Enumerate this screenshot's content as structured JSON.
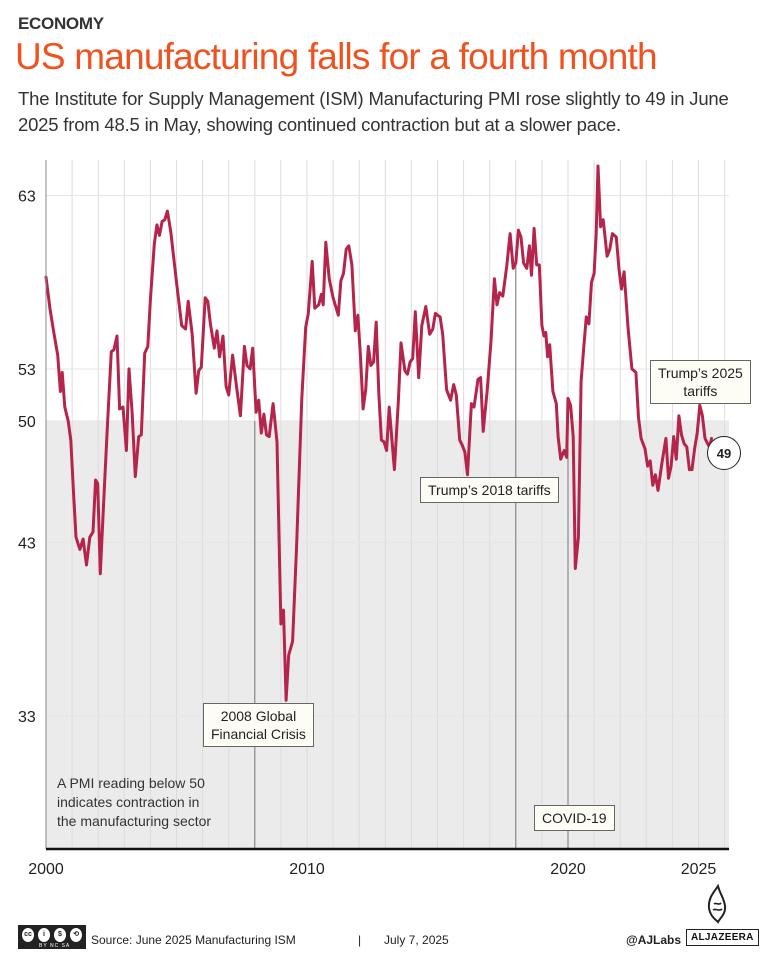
{
  "header": {
    "kicker": "ECONOMY",
    "title": "US manufacturing falls for a fourth month",
    "subtitle": "The Institute for Supply Management (ISM) Manufacturing PMI rose slightly to 49 in June 2025 from 48.5 in May, showing continued contraction but at a slower pace."
  },
  "colors": {
    "title": "#f0521f",
    "line": "#b5244a",
    "contraction_shade": "#ebebeb",
    "event_line": "#777777"
  },
  "chart_data": {
    "type": "line",
    "title": "US manufacturing falls for a fourth month",
    "xlabel": "",
    "ylabel": "",
    "ylim": [
      27,
      65
    ],
    "xlim": [
      2000,
      2026.2
    ],
    "yticks": [
      33,
      43,
      50,
      53,
      63
    ],
    "xticks": [
      2000,
      2010,
      2020,
      2025
    ],
    "grid": "vertical yearly",
    "threshold": {
      "value": 50,
      "label": "A PMI reading below 50 indicates contraction in the manufacturing sector"
    },
    "series": [
      {
        "name": "ISM Manufacturing PMI",
        "points": [
          [
            2000.0,
            58.3
          ],
          [
            2000.15,
            56.5
          ],
          [
            2000.3,
            55.1
          ],
          [
            2000.45,
            53.8
          ],
          [
            2000.55,
            51.7
          ],
          [
            2000.62,
            52.8
          ],
          [
            2000.72,
            50.8
          ],
          [
            2000.85,
            50.0
          ],
          [
            2000.95,
            48.9
          ],
          [
            2001.05,
            46.0
          ],
          [
            2001.15,
            43.3
          ],
          [
            2001.3,
            42.6
          ],
          [
            2001.42,
            43.2
          ],
          [
            2001.55,
            41.7
          ],
          [
            2001.68,
            43.3
          ],
          [
            2001.8,
            43.6
          ],
          [
            2001.9,
            46.6
          ],
          [
            2001.98,
            46.4
          ],
          [
            2002.08,
            41.2
          ],
          [
            2002.2,
            45.0
          ],
          [
            2002.35,
            49.6
          ],
          [
            2002.5,
            54.0
          ],
          [
            2002.6,
            54.1
          ],
          [
            2002.72,
            54.9
          ],
          [
            2002.82,
            50.7
          ],
          [
            2002.95,
            50.8
          ],
          [
            2003.08,
            48.3
          ],
          [
            2003.18,
            53.0
          ],
          [
            2003.3,
            50.5
          ],
          [
            2003.42,
            46.8
          ],
          [
            2003.55,
            49.1
          ],
          [
            2003.65,
            49.2
          ],
          [
            2003.78,
            53.9
          ],
          [
            2003.9,
            54.3
          ],
          [
            2004.0,
            57.0
          ],
          [
            2004.15,
            60.2
          ],
          [
            2004.25,
            61.3
          ],
          [
            2004.35,
            60.7
          ],
          [
            2004.45,
            61.5
          ],
          [
            2004.55,
            61.6
          ],
          [
            2004.65,
            62.1
          ],
          [
            2004.78,
            60.9
          ],
          [
            2005.0,
            58.0
          ],
          [
            2005.2,
            55.5
          ],
          [
            2005.35,
            55.3
          ],
          [
            2005.45,
            56.9
          ],
          [
            2005.6,
            55.0
          ],
          [
            2005.75,
            51.6
          ],
          [
            2005.85,
            52.9
          ],
          [
            2005.95,
            53.1
          ],
          [
            2006.1,
            57.1
          ],
          [
            2006.2,
            56.9
          ],
          [
            2006.3,
            55.6
          ],
          [
            2006.45,
            54.2
          ],
          [
            2006.55,
            55.2
          ],
          [
            2006.65,
            53.7
          ],
          [
            2006.78,
            54.9
          ],
          [
            2006.9,
            52.0
          ],
          [
            2007.0,
            51.5
          ],
          [
            2007.15,
            53.8
          ],
          [
            2007.3,
            52.0
          ],
          [
            2007.45,
            50.3
          ],
          [
            2007.6,
            54.3
          ],
          [
            2007.7,
            53.2
          ],
          [
            2007.82,
            53.0
          ],
          [
            2007.92,
            54.2
          ],
          [
            2008.05,
            50.5
          ],
          [
            2008.15,
            51.2
          ],
          [
            2008.25,
            49.3
          ],
          [
            2008.35,
            50.4
          ],
          [
            2008.45,
            49.2
          ],
          [
            2008.55,
            49.1
          ],
          [
            2008.7,
            51.0
          ],
          [
            2008.85,
            48.8
          ],
          [
            2009.0,
            38.3
          ],
          [
            2009.1,
            39.1
          ],
          [
            2009.2,
            33.9
          ],
          [
            2009.3,
            36.5
          ],
          [
            2009.45,
            37.3
          ],
          [
            2009.6,
            42.8
          ],
          [
            2009.8,
            51.3
          ],
          [
            2009.95,
            55.4
          ],
          [
            2010.05,
            56.2
          ],
          [
            2010.2,
            59.2
          ],
          [
            2010.3,
            56.5
          ],
          [
            2010.45,
            56.7
          ],
          [
            2010.55,
            57.3
          ],
          [
            2010.62,
            56.7
          ],
          [
            2010.72,
            60.3
          ],
          [
            2010.85,
            58.2
          ],
          [
            2011.0,
            57.1
          ],
          [
            2011.1,
            56.6
          ],
          [
            2011.2,
            56.1
          ],
          [
            2011.3,
            58.1
          ],
          [
            2011.4,
            58.5
          ],
          [
            2011.5,
            59.9
          ],
          [
            2011.6,
            60.1
          ],
          [
            2011.72,
            59.0
          ],
          [
            2011.85,
            55.2
          ],
          [
            2011.95,
            56.1
          ],
          [
            2012.05,
            53.7
          ],
          [
            2012.15,
            50.7
          ],
          [
            2012.25,
            51.8
          ],
          [
            2012.35,
            54.3
          ],
          [
            2012.45,
            53.2
          ],
          [
            2012.55,
            53.4
          ],
          [
            2012.65,
            55.7
          ],
          [
            2012.75,
            51.6
          ],
          [
            2012.85,
            48.9
          ],
          [
            2012.95,
            48.8
          ],
          [
            2013.05,
            48.3
          ],
          [
            2013.15,
            50.8
          ],
          [
            2013.25,
            49.0
          ],
          [
            2013.35,
            47.2
          ],
          [
            2013.5,
            51.2
          ],
          [
            2013.6,
            54.5
          ],
          [
            2013.75,
            52.9
          ],
          [
            2013.85,
            52.7
          ],
          [
            2013.95,
            53.4
          ],
          [
            2014.05,
            53.6
          ],
          [
            2014.15,
            56.3
          ],
          [
            2014.28,
            52.5
          ],
          [
            2014.4,
            55.5
          ],
          [
            2014.55,
            56.6
          ],
          [
            2014.7,
            55.0
          ],
          [
            2014.82,
            55.3
          ],
          [
            2014.92,
            56.2
          ],
          [
            2015.0,
            56.1
          ],
          [
            2015.1,
            56.0
          ],
          [
            2015.2,
            55.0
          ],
          [
            2015.35,
            51.8
          ],
          [
            2015.5,
            51.2
          ],
          [
            2015.62,
            52.1
          ],
          [
            2015.72,
            51.5
          ],
          [
            2015.85,
            48.9
          ],
          [
            2015.95,
            48.6
          ],
          [
            2016.05,
            48.2
          ],
          [
            2016.15,
            46.9
          ],
          [
            2016.3,
            51.0
          ],
          [
            2016.4,
            50.8
          ],
          [
            2016.55,
            52.4
          ],
          [
            2016.65,
            52.5
          ],
          [
            2016.75,
            49.4
          ],
          [
            2016.9,
            51.7
          ],
          [
            2017.05,
            54.6
          ],
          [
            2017.18,
            58.2
          ],
          [
            2017.28,
            56.7
          ],
          [
            2017.38,
            57.4
          ],
          [
            2017.5,
            57.2
          ],
          [
            2017.65,
            58.9
          ],
          [
            2017.78,
            60.8
          ],
          [
            2017.9,
            58.8
          ],
          [
            2018.0,
            59.1
          ],
          [
            2018.1,
            61.0
          ],
          [
            2018.2,
            60.6
          ],
          [
            2018.3,
            59.1
          ],
          [
            2018.42,
            58.8
          ],
          [
            2018.52,
            60.1
          ],
          [
            2018.6,
            58.4
          ],
          [
            2018.7,
            61.1
          ],
          [
            2018.8,
            59.0
          ],
          [
            2018.9,
            59.0
          ],
          [
            2019.0,
            55.5
          ],
          [
            2019.08,
            54.9
          ],
          [
            2019.15,
            55.1
          ],
          [
            2019.22,
            53.7
          ],
          [
            2019.3,
            54.4
          ],
          [
            2019.42,
            51.7
          ],
          [
            2019.55,
            51.0
          ],
          [
            2019.62,
            49.1
          ],
          [
            2019.72,
            47.8
          ],
          [
            2019.85,
            48.3
          ],
          [
            2019.95,
            47.9
          ],
          [
            2020.0,
            51.3
          ],
          [
            2020.1,
            50.9
          ],
          [
            2020.2,
            49.1
          ],
          [
            2020.28,
            41.5
          ],
          [
            2020.4,
            43.3
          ],
          [
            2020.5,
            52.3
          ],
          [
            2020.6,
            54.2
          ],
          [
            2020.7,
            56.0
          ],
          [
            2020.8,
            55.6
          ],
          [
            2020.9,
            58.0
          ],
          [
            2021.0,
            58.5
          ],
          [
            2021.08,
            60.8
          ],
          [
            2021.15,
            64.7
          ],
          [
            2021.25,
            61.2
          ],
          [
            2021.35,
            61.6
          ],
          [
            2021.5,
            59.5
          ],
          [
            2021.6,
            59.9
          ],
          [
            2021.7,
            60.8
          ],
          [
            2021.85,
            60.6
          ],
          [
            2021.95,
            58.8
          ],
          [
            2022.05,
            57.6
          ],
          [
            2022.15,
            58.6
          ],
          [
            2022.3,
            55.4
          ],
          [
            2022.45,
            53.0
          ],
          [
            2022.6,
            52.8
          ],
          [
            2022.7,
            50.2
          ],
          [
            2022.8,
            49.0
          ],
          [
            2022.95,
            48.4
          ],
          [
            2023.05,
            47.4
          ],
          [
            2023.15,
            47.7
          ],
          [
            2023.25,
            46.3
          ],
          [
            2023.35,
            46.9
          ],
          [
            2023.45,
            46.0
          ],
          [
            2023.6,
            47.6
          ],
          [
            2023.75,
            49.0
          ],
          [
            2023.85,
            46.7
          ],
          [
            2023.95,
            47.4
          ],
          [
            2024.05,
            49.1
          ],
          [
            2024.15,
            47.8
          ],
          [
            2024.25,
            50.3
          ],
          [
            2024.35,
            49.2
          ],
          [
            2024.45,
            48.7
          ],
          [
            2024.55,
            48.5
          ],
          [
            2024.65,
            47.2
          ],
          [
            2024.75,
            47.2
          ],
          [
            2024.85,
            48.4
          ],
          [
            2024.95,
            49.3
          ],
          [
            2025.05,
            50.9
          ],
          [
            2025.15,
            50.3
          ],
          [
            2025.25,
            49.0
          ],
          [
            2025.35,
            48.7
          ],
          [
            2025.42,
            48.5
          ],
          [
            2025.5,
            49.0
          ]
        ]
      }
    ],
    "annotations": [
      {
        "label": "2008 Global Financial Crisis",
        "year": 2008.0
      },
      {
        "label": "Trump’s 2018 tariffs",
        "year": 2018.0
      },
      {
        "label": "COVID-19",
        "year": 2020.0
      },
      {
        "label": "Trump’s 2025 tariffs",
        "year": 2025.0
      }
    ],
    "end_label": "49"
  },
  "labels": {
    "annot_gfc_line1": "2008 Global",
    "annot_gfc_line2": "Financial Crisis",
    "annot_2018": "Trump’s 2018 tariffs",
    "annot_covid": "COVID-19",
    "annot_2025_line1": "Trump’s 2025",
    "annot_2025_line2": "tariffs",
    "note_line1": "A PMI reading below 50",
    "note_line2": "indicates contraction in",
    "note_line3": "the manufacturing sector",
    "end_value": "49"
  },
  "footer": {
    "license_icon": "creative-commons-by-nc-sa",
    "license_text": "BY NC SA",
    "source": "Source:  June 2025 Manufacturing ISM",
    "separator": "|",
    "date": "July 7, 2025",
    "handle": "@AJLabs",
    "brand": "ALJAZEERA"
  }
}
